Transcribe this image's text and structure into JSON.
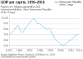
{
  "chart_data": {
    "type": "line",
    "title": "GDP per capita, 1950–2018",
    "subtitle": "Figures are inflation-adjusted to 2011 International dollars. (from Democratic Republic of the Congo)",
    "annotations": [
      "Source: Maddison Project Database 2018 (Bolt et al. 2018)",
      "OurWorldInData.org/economic-growth"
    ],
    "x": [
      1950,
      1951,
      1952,
      1953,
      1954,
      1955,
      1956,
      1957,
      1958,
      1959,
      1960,
      1961,
      1962,
      1963,
      1964,
      1965,
      1966,
      1967,
      1968,
      1969,
      1970,
      1971,
      1972,
      1973,
      1974,
      1975,
      1976,
      1977,
      1978,
      1979,
      1980,
      1981,
      1982,
      1983,
      1984,
      1985,
      1986,
      1987,
      1988,
      1989,
      1990,
      1991,
      1992,
      1993,
      1994,
      1995,
      1996,
      1997,
      1998,
      1999,
      2000,
      2001,
      2002,
      2003,
      2004,
      2005,
      2006,
      2007,
      2008,
      2009,
      2010,
      2011,
      2012,
      2013,
      2014,
      2015,
      2016,
      2017,
      2018
    ],
    "series": [
      {
        "name": "Democratic Republic\nof the Congo",
        "color": "#8ecae6",
        "values": [
          700,
          718,
          728,
          738,
          755,
          775,
          808,
          838,
          855,
          868,
          818,
          778,
          758,
          735,
          758,
          798,
          818,
          848,
          868,
          888,
          918,
          938,
          958,
          978,
          998,
          975,
          948,
          918,
          898,
          908,
          898,
          875,
          858,
          838,
          828,
          818,
          808,
          798,
          808,
          818,
          798,
          758,
          718,
          678,
          638,
          618,
          588,
          568,
          558,
          548,
          528,
          518,
          508,
          508,
          518,
          528,
          548,
          568,
          588,
          590,
          598,
          618,
          638,
          658,
          678,
          688,
          688,
          698,
          718
        ]
      }
    ],
    "xlim": [
      1950,
      2018
    ],
    "xticks": [
      1950,
      1960,
      1970,
      1980,
      1990,
      2000,
      2010,
      2018
    ],
    "ylim": [
      460,
      1050
    ],
    "yticks": [
      500,
      600,
      700,
      800,
      900,
      {
        "value": 1000,
        "label": "1,000"
      }
    ],
    "grid": "y",
    "legend": "top-right"
  }
}
